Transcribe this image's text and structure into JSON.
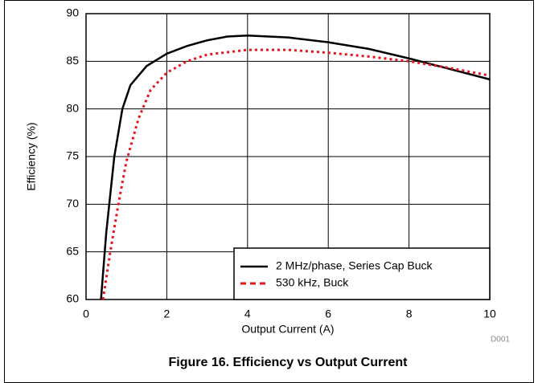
{
  "chart_data": {
    "type": "line",
    "title": "Figure 16. Efficiency vs Output Current",
    "note": "D001",
    "xlabel": "Output Current (A)",
    "ylabel": "Efficiency (%)",
    "xlim": [
      0,
      10
    ],
    "xticks": [
      0,
      2,
      4,
      6,
      8,
      10
    ],
    "ylim": [
      60,
      90
    ],
    "yticks": [
      60,
      65,
      70,
      75,
      80,
      85,
      90
    ],
    "grid": true,
    "legend": "lower right",
    "series": [
      {
        "name": "2 MHz/phase, Series Cap Buck",
        "color": "#000000",
        "style": "solid",
        "x": [
          0.37,
          0.5,
          0.7,
          0.9,
          1.1,
          1.5,
          2,
          2.5,
          3,
          3.5,
          4,
          5,
          6,
          7,
          8,
          9,
          10
        ],
        "values": [
          60,
          67,
          75,
          80,
          82.5,
          84.5,
          85.8,
          86.6,
          87.2,
          87.6,
          87.7,
          87.5,
          87.0,
          86.3,
          85.3,
          84.2,
          83.1
        ]
      },
      {
        "name": "530 kHz, Buck",
        "color": "#e8141e",
        "style": "dashed",
        "x": [
          0.42,
          0.6,
          0.8,
          1.0,
          1.3,
          1.6,
          2,
          2.5,
          3,
          4,
          5,
          6,
          7,
          8,
          9,
          10
        ],
        "values": [
          60,
          65,
          70,
          74.5,
          79,
          82,
          83.8,
          85,
          85.7,
          86.2,
          86.2,
          85.9,
          85.5,
          85.0,
          84.3,
          83.5
        ]
      }
    ]
  }
}
